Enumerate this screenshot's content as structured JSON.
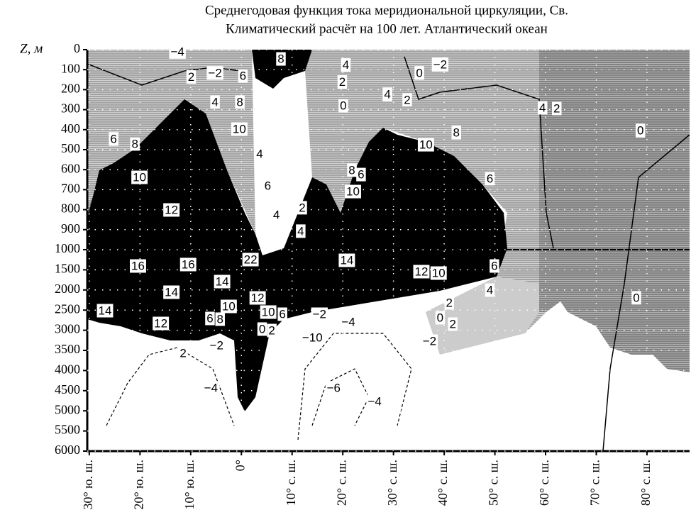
{
  "chart_data": {
    "type": "contour",
    "title": [
      "Среднегодовая функция тока меридиональной циркуляции, Св.",
      "Климатический расчёт на 100 лет. Атлантический океан"
    ],
    "y_label": "Z, м",
    "xlim": [
      -30.4,
      88.4
    ],
    "xticks": [
      {
        "value": -30,
        "label": "30° ю. ш."
      },
      {
        "value": -20,
        "label": "20° ю. ш."
      },
      {
        "value": -10,
        "label": "10° ю. ш."
      },
      {
        "value": 0,
        "label": "0°"
      },
      {
        "value": 10,
        "label": "10° с. ш."
      },
      {
        "value": 20,
        "label": "20° с. ш."
      },
      {
        "value": 30,
        "label": "30° с. ш."
      },
      {
        "value": 40,
        "label": "40° с. ш."
      },
      {
        "value": 50,
        "label": "50° с. ш."
      },
      {
        "value": 60,
        "label": "60° с. ш."
      },
      {
        "value": 70,
        "label": "70° с. ш."
      },
      {
        "value": 80,
        "label": "80° с. ш."
      }
    ],
    "ylim": [
      0,
      6000
    ],
    "ybreak": 1000,
    "yticks": [
      0,
      100,
      200,
      300,
      400,
      500,
      600,
      700,
      800,
      900,
      1000,
      1500,
      2000,
      2500,
      3000,
      3500,
      4000,
      4500,
      5000,
      5500,
      6000
    ],
    "grid": true,
    "contour_labels": [
      {
        "x": 7.8,
        "y": 50,
        "value": 8
      },
      {
        "x": -12.6,
        "y": 15,
        "value": -4,
        "label": "−4"
      },
      {
        "x": -9.9,
        "y": 140,
        "value": 2
      },
      {
        "x": -5.2,
        "y": 120,
        "value": -2,
        "label": "−2"
      },
      {
        "x": 0.3,
        "y": 135,
        "value": 6
      },
      {
        "x": 20.6,
        "y": 80,
        "value": 4
      },
      {
        "x": 19.9,
        "y": 165,
        "value": 2
      },
      {
        "x": 20.1,
        "y": 284,
        "value": 0
      },
      {
        "x": 35.1,
        "y": 120,
        "value": 0
      },
      {
        "x": 39.2,
        "y": 78,
        "value": -2,
        "label": "−2"
      },
      {
        "x": -5.2,
        "y": 266,
        "value": 4
      },
      {
        "x": -0.3,
        "y": 266,
        "value": 8
      },
      {
        "x": -0.4,
        "y": 400,
        "value": 10
      },
      {
        "x": 28.8,
        "y": 227,
        "value": 4
      },
      {
        "x": 32.7,
        "y": 255,
        "value": 2
      },
      {
        "x": 59.4,
        "y": 294,
        "value": 4
      },
      {
        "x": 62.2,
        "y": 298,
        "value": 2
      },
      {
        "x": 78.7,
        "y": 408,
        "value": 0
      },
      {
        "x": -25.2,
        "y": 450,
        "value": 6
      },
      {
        "x": -21,
        "y": 475,
        "value": 8
      },
      {
        "x": -20.1,
        "y": 642,
        "value": 10
      },
      {
        "x": 3.6,
        "y": 525,
        "value": 4
      },
      {
        "x": 21.8,
        "y": 606,
        "value": 8
      },
      {
        "x": 23.6,
        "y": 628,
        "value": 6
      },
      {
        "x": 36.4,
        "y": 479,
        "value": 10
      },
      {
        "x": 42.4,
        "y": 418,
        "value": 8
      },
      {
        "x": 49,
        "y": 649,
        "value": 6
      },
      {
        "x": 5.2,
        "y": 684,
        "value": 6
      },
      {
        "x": 22,
        "y": 713,
        "value": 10
      },
      {
        "x": -13.8,
        "y": 805,
        "value": 12
      },
      {
        "x": 6.9,
        "y": 830,
        "value": 4
      },
      {
        "x": 12,
        "y": 794,
        "value": 2
      },
      {
        "x": 11.7,
        "y": 911,
        "value": 4
      },
      {
        "x": 1.8,
        "y": 1264,
        "value": 22
      },
      {
        "x": -20.4,
        "y": 1423,
        "value": 16
      },
      {
        "x": -10.5,
        "y": 1387,
        "value": 16
      },
      {
        "x": 20.8,
        "y": 1282,
        "value": 14
      },
      {
        "x": 35.5,
        "y": 1563,
        "value": 12
      },
      {
        "x": 38.9,
        "y": 1599,
        "value": 10
      },
      {
        "x": 49.9,
        "y": 1423,
        "value": 6
      },
      {
        "x": -3.8,
        "y": 1810,
        "value": 14
      },
      {
        "x": -13.8,
        "y": 2074,
        "value": 14
      },
      {
        "x": 3.2,
        "y": 2215,
        "value": 12
      },
      {
        "x": 49,
        "y": 2021,
        "value": 4
      },
      {
        "x": -2.5,
        "y": 2426,
        "value": 10
      },
      {
        "x": 5.3,
        "y": 2567,
        "value": 10
      },
      {
        "x": 8.1,
        "y": 2620,
        "value": 6
      },
      {
        "x": 41,
        "y": 2338,
        "value": 2
      },
      {
        "x": 39.2,
        "y": 2708,
        "value": 0
      },
      {
        "x": 41.7,
        "y": 2866,
        "value": 2
      },
      {
        "x": 77.9,
        "y": 2215,
        "value": 0
      },
      {
        "x": -26.9,
        "y": 2532,
        "value": 14
      },
      {
        "x": -15.9,
        "y": 2849,
        "value": 12
      },
      {
        "x": -6.2,
        "y": 2725,
        "value": 6
      },
      {
        "x": -4.2,
        "y": 2743,
        "value": 8
      },
      {
        "x": 15.4,
        "y": 2620,
        "value": -2,
        "label": "−2"
      },
      {
        "x": 21.1,
        "y": 2813,
        "value": -4,
        "label": "−4"
      },
      {
        "x": 4.1,
        "y": 2989,
        "value": 0
      },
      {
        "x": 6,
        "y": 3025,
        "value": 2
      },
      {
        "x": 14,
        "y": 3200,
        "value": -10,
        "label": "−10"
      },
      {
        "x": -4.9,
        "y": 3394,
        "value": -2,
        "label": "−2"
      },
      {
        "x": -11.5,
        "y": 3588,
        "value": 2
      },
      {
        "x": 37.1,
        "y": 3289,
        "value": -2,
        "label": "−2"
      },
      {
        "x": -6,
        "y": 4451,
        "value": -4,
        "label": "−4"
      },
      {
        "x": 18.2,
        "y": 4451,
        "value": -6,
        "label": "−6"
      },
      {
        "x": 26.3,
        "y": 4785,
        "value": -4,
        "label": "−4"
      }
    ]
  }
}
